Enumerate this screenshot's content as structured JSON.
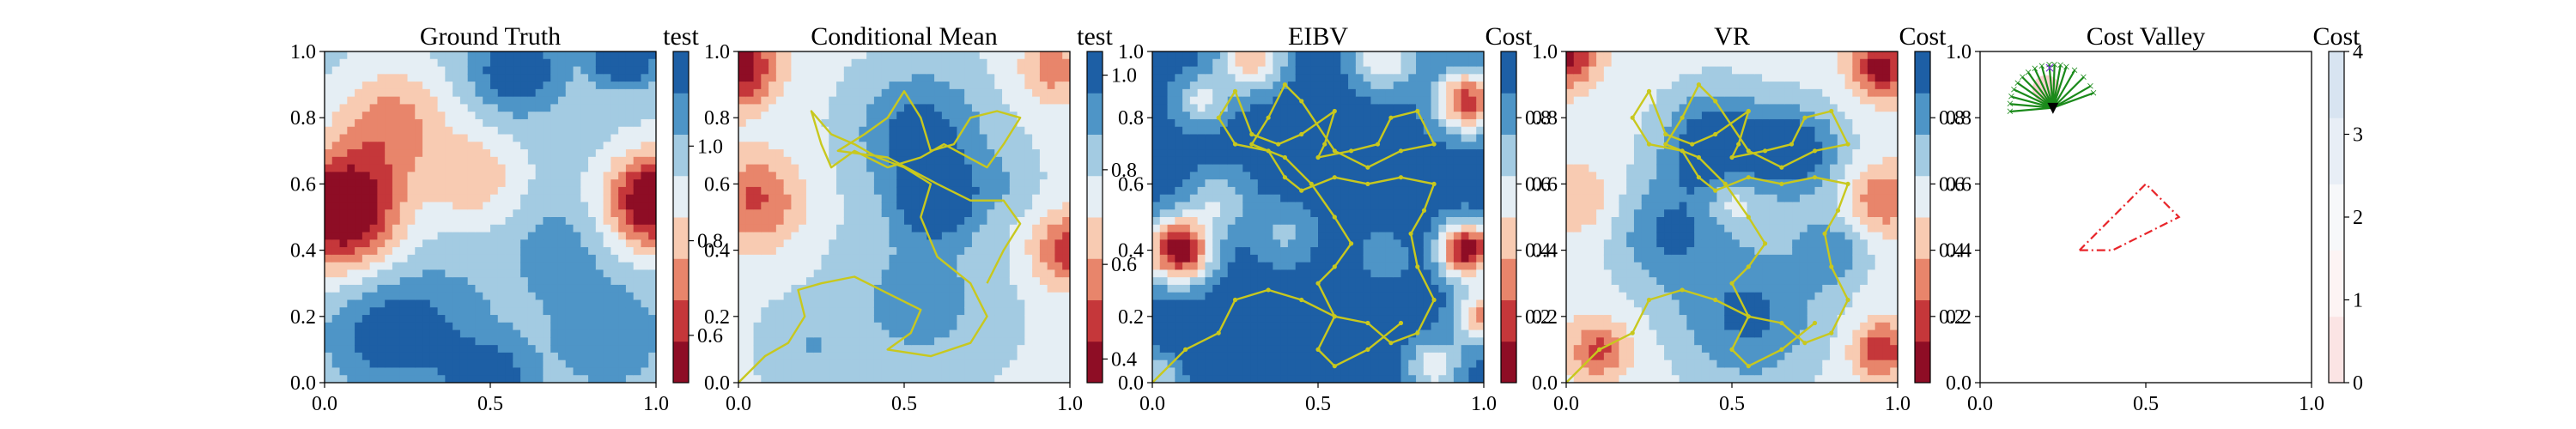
{
  "chart_data": [
    {
      "type": "heatmap",
      "title": "Ground Truth",
      "colorbar_label": "test",
      "colormap": "RdBu",
      "levels": 8,
      "xlim": [
        0,
        1
      ],
      "ylim": [
        0,
        1
      ],
      "xticks": [
        "0.0",
        "0.5",
        "1.0"
      ],
      "yticks": [
        "0.0",
        "0.2",
        "0.4",
        "0.6",
        "0.8",
        "1.0"
      ],
      "colorbar_range": [
        0.5,
        1.2
      ],
      "colorbar_ticks": [
        "0.6",
        "0.8",
        "1.0"
      ],
      "colorbar_tick_values": [
        0.6,
        0.8,
        1.0
      ],
      "field": {
        "base": 0.97,
        "bumps": [
          [
            0.05,
            0.52,
            0.12,
            -0.55
          ],
          [
            0.2,
            0.78,
            0.12,
            -0.25
          ],
          [
            1.0,
            0.55,
            0.1,
            -0.55
          ],
          [
            0.45,
            0.62,
            0.1,
            -0.18
          ],
          [
            0.58,
            0.95,
            0.09,
            0.25
          ],
          [
            0.9,
            1.0,
            0.06,
            0.45
          ],
          [
            0.3,
            0.15,
            0.14,
            0.15
          ],
          [
            0.5,
            0.0,
            0.08,
            0.25
          ],
          [
            0.85,
            0.15,
            0.12,
            0.12
          ],
          [
            0.15,
            0.15,
            0.1,
            0.12
          ],
          [
            0.7,
            0.4,
            0.1,
            0.1
          ]
        ]
      }
    },
    {
      "type": "heatmap",
      "title": "Conditional Mean",
      "colorbar_label": "test",
      "colormap": "RdBu",
      "levels": 8,
      "xlim": [
        0,
        1
      ],
      "ylim": [
        0,
        1
      ],
      "xticks": [
        "0.0",
        "0.5",
        "1.0"
      ],
      "yticks": [
        "0.0",
        "0.2",
        "0.4",
        "0.6",
        "0.8",
        "1.0"
      ],
      "colorbar_range": [
        0.35,
        1.05
      ],
      "colorbar_ticks": [
        "0.4",
        "0.6",
        "0.8",
        "1.0"
      ],
      "colorbar_tick_values": [
        0.4,
        0.6,
        0.8,
        1.0
      ],
      "field": {
        "base": 0.76,
        "bumps": [
          [
            0.0,
            0.95,
            0.08,
            -0.4
          ],
          [
            0.05,
            0.55,
            0.1,
            -0.25
          ],
          [
            1.0,
            0.4,
            0.08,
            -0.3
          ],
          [
            0.95,
            0.95,
            0.07,
            -0.2
          ],
          [
            0.55,
            0.75,
            0.14,
            0.25
          ],
          [
            0.6,
            0.55,
            0.08,
            0.25
          ],
          [
            0.55,
            0.25,
            0.18,
            0.15
          ],
          [
            0.2,
            0.1,
            0.1,
            0.1
          ],
          [
            0.8,
            0.6,
            0.08,
            0.08
          ]
        ]
      },
      "paths": [
        {
          "name": "",
          "color": "#c8c81e",
          "markers": false,
          "points": [
            [
              0,
              0
            ],
            [
              0.08,
              0.08
            ],
            [
              0.15,
              0.12
            ],
            [
              0.2,
              0.2
            ],
            [
              0.18,
              0.28
            ],
            [
              0.25,
              0.3
            ],
            [
              0.35,
              0.32
            ],
            [
              0.45,
              0.27
            ],
            [
              0.55,
              0.22
            ],
            [
              0.52,
              0.15
            ],
            [
              0.45,
              0.1
            ],
            [
              0.58,
              0.08
            ],
            [
              0.7,
              0.12
            ],
            [
              0.75,
              0.2
            ],
            [
              0.7,
              0.3
            ],
            [
              0.6,
              0.38
            ],
            [
              0.55,
              0.5
            ],
            [
              0.58,
              0.6
            ],
            [
              0.5,
              0.65
            ],
            [
              0.42,
              0.68
            ],
            [
              0.35,
              0.72
            ],
            [
              0.28,
              0.75
            ],
            [
              0.22,
              0.82
            ],
            [
              0.25,
              0.72
            ],
            [
              0.28,
              0.65
            ],
            [
              0.35,
              0.7
            ],
            [
              0.45,
              0.65
            ],
            [
              0.55,
              0.68
            ],
            [
              0.62,
              0.72
            ],
            [
              0.75,
              0.65
            ],
            [
              0.8,
              0.72
            ],
            [
              0.85,
              0.8
            ],
            [
              0.78,
              0.82
            ],
            [
              0.7,
              0.8
            ],
            [
              0.65,
              0.72
            ],
            [
              0.58,
              0.7
            ],
            [
              0.55,
              0.8
            ],
            [
              0.5,
              0.88
            ],
            [
              0.45,
              0.8
            ],
            [
              0.38,
              0.75
            ],
            [
              0.3,
              0.7
            ],
            [
              0.45,
              0.68
            ],
            [
              0.6,
              0.6
            ],
            [
              0.7,
              0.55
            ],
            [
              0.8,
              0.55
            ],
            [
              0.85,
              0.48
            ],
            [
              0.8,
              0.4
            ],
            [
              0.75,
              0.3
            ]
          ]
        }
      ]
    },
    {
      "type": "heatmap",
      "title": "EIBV",
      "colorbar_label": "Cost",
      "colormap": "RdBu",
      "levels": 8,
      "xlim": [
        0,
        1
      ],
      "ylim": [
        0,
        1
      ],
      "xticks": [
        "0.0",
        "0.5",
        "1.0"
      ],
      "yticks": [
        "0.0",
        "0.2",
        "0.4",
        "0.6",
        "0.8",
        "1.0"
      ],
      "colorbar_range": [
        0.0,
        1.0
      ],
      "colorbar_ticks": [
        "0.2",
        "0.4",
        "0.6",
        "0.8"
      ],
      "colorbar_tick_values": [
        0.2,
        0.4,
        0.6,
        0.8
      ],
      "field": {
        "base": 0.95,
        "bumps": [
          [
            0.08,
            0.4,
            0.07,
            -0.92
          ],
          [
            0.95,
            0.4,
            0.06,
            -0.92
          ],
          [
            0.3,
            0.98,
            0.07,
            -0.55
          ],
          [
            0.15,
            0.85,
            0.06,
            -0.35
          ],
          [
            0.95,
            0.85,
            0.07,
            -0.75
          ],
          [
            0.7,
            0.98,
            0.07,
            -0.45
          ],
          [
            0.4,
            0.45,
            0.07,
            -0.22
          ],
          [
            0.7,
            0.38,
            0.05,
            -0.2
          ],
          [
            0.85,
            0.05,
            0.06,
            -0.4
          ],
          [
            0.02,
            0.02,
            0.05,
            -0.3
          ],
          [
            1.0,
            0.2,
            0.06,
            -0.6
          ],
          [
            0.2,
            0.55,
            0.07,
            -0.3
          ]
        ]
      },
      "paths": [
        {
          "name": "",
          "color": "#c8c81e",
          "markers": true,
          "points": [
            [
              0,
              0
            ],
            [
              0.1,
              0.1
            ],
            [
              0.2,
              0.15
            ],
            [
              0.25,
              0.25
            ],
            [
              0.35,
              0.28
            ],
            [
              0.45,
              0.25
            ],
            [
              0.55,
              0.2
            ],
            [
              0.65,
              0.18
            ],
            [
              0.72,
              0.12
            ],
            [
              0.8,
              0.15
            ],
            [
              0.85,
              0.25
            ],
            [
              0.8,
              0.35
            ],
            [
              0.78,
              0.45
            ],
            [
              0.82,
              0.52
            ],
            [
              0.85,
              0.6
            ],
            [
              0.75,
              0.62
            ],
            [
              0.65,
              0.6
            ],
            [
              0.55,
              0.62
            ],
            [
              0.45,
              0.58
            ],
            [
              0.4,
              0.62
            ],
            [
              0.35,
              0.7
            ],
            [
              0.25,
              0.72
            ],
            [
              0.2,
              0.8
            ],
            [
              0.25,
              0.88
            ],
            [
              0.3,
              0.75
            ],
            [
              0.38,
              0.72
            ],
            [
              0.45,
              0.75
            ],
            [
              0.55,
              0.82
            ],
            [
              0.52,
              0.72
            ],
            [
              0.5,
              0.68
            ],
            [
              0.6,
              0.7
            ],
            [
              0.68,
              0.72
            ],
            [
              0.72,
              0.8
            ],
            [
              0.8,
              0.82
            ],
            [
              0.85,
              0.72
            ],
            [
              0.75,
              0.7
            ],
            [
              0.65,
              0.65
            ],
            [
              0.55,
              0.7
            ],
            [
              0.45,
              0.85
            ],
            [
              0.4,
              0.9
            ],
            [
              0.35,
              0.8
            ],
            [
              0.3,
              0.72
            ],
            [
              0.4,
              0.68
            ],
            [
              0.48,
              0.6
            ],
            [
              0.55,
              0.5
            ],
            [
              0.6,
              0.42
            ],
            [
              0.55,
              0.35
            ],
            [
              0.5,
              0.3
            ],
            [
              0.55,
              0.2
            ],
            [
              0.5,
              0.1
            ],
            [
              0.55,
              0.05
            ],
            [
              0.65,
              0.1
            ],
            [
              0.75,
              0.18
            ]
          ]
        }
      ]
    },
    {
      "type": "heatmap",
      "title": "VR",
      "colorbar_label": "Cost",
      "colormap": "RdBu",
      "levels": 8,
      "xlim": [
        0,
        1
      ],
      "ylim": [
        0,
        1
      ],
      "xticks": [
        "0.0",
        "0.5",
        "1.0"
      ],
      "yticks": [
        "0.0",
        "0.2",
        "0.4",
        "0.6",
        "0.8",
        "1.0"
      ],
      "colorbar_range": [
        0.0,
        1.0
      ],
      "colorbar_ticks": [
        "0.2",
        "0.4",
        "0.6",
        "0.8"
      ],
      "colorbar_tick_values": [
        0.2,
        0.4,
        0.6,
        0.8
      ],
      "field": {
        "base": 0.55,
        "bumps": [
          [
            0.45,
            0.72,
            0.12,
            0.45
          ],
          [
            0.7,
            0.7,
            0.1,
            0.4
          ],
          [
            0.3,
            0.45,
            0.12,
            0.3
          ],
          [
            0.55,
            0.2,
            0.16,
            0.35
          ],
          [
            0.8,
            0.4,
            0.08,
            0.25
          ],
          [
            0.0,
            0.98,
            0.06,
            -0.5
          ],
          [
            0.95,
            0.95,
            0.06,
            -0.5
          ],
          [
            0.1,
            0.1,
            0.06,
            -0.35
          ],
          [
            0.95,
            0.1,
            0.06,
            -0.4
          ],
          [
            0.95,
            0.55,
            0.07,
            -0.3
          ],
          [
            0.5,
            0.55,
            0.05,
            -0.2
          ],
          [
            0.05,
            0.55,
            0.08,
            -0.15
          ]
        ]
      },
      "paths": [
        {
          "name": "",
          "color": "#c8c81e",
          "markers": true,
          "points": [
            [
              0,
              0
            ],
            [
              0.1,
              0.1
            ],
            [
              0.2,
              0.15
            ],
            [
              0.25,
              0.25
            ],
            [
              0.35,
              0.28
            ],
            [
              0.45,
              0.25
            ],
            [
              0.55,
              0.2
            ],
            [
              0.65,
              0.18
            ],
            [
              0.72,
              0.12
            ],
            [
              0.8,
              0.15
            ],
            [
              0.85,
              0.25
            ],
            [
              0.8,
              0.35
            ],
            [
              0.78,
              0.45
            ],
            [
              0.82,
              0.52
            ],
            [
              0.85,
              0.6
            ],
            [
              0.75,
              0.62
            ],
            [
              0.65,
              0.6
            ],
            [
              0.55,
              0.62
            ],
            [
              0.45,
              0.58
            ],
            [
              0.4,
              0.62
            ],
            [
              0.35,
              0.7
            ],
            [
              0.25,
              0.72
            ],
            [
              0.2,
              0.8
            ],
            [
              0.25,
              0.88
            ],
            [
              0.3,
              0.75
            ],
            [
              0.38,
              0.72
            ],
            [
              0.45,
              0.75
            ],
            [
              0.55,
              0.82
            ],
            [
              0.52,
              0.72
            ],
            [
              0.5,
              0.68
            ],
            [
              0.6,
              0.7
            ],
            [
              0.68,
              0.72
            ],
            [
              0.72,
              0.8
            ],
            [
              0.8,
              0.82
            ],
            [
              0.85,
              0.72
            ],
            [
              0.75,
              0.7
            ],
            [
              0.65,
              0.65
            ],
            [
              0.55,
              0.7
            ],
            [
              0.45,
              0.85
            ],
            [
              0.4,
              0.9
            ],
            [
              0.35,
              0.8
            ],
            [
              0.3,
              0.72
            ],
            [
              0.4,
              0.68
            ],
            [
              0.48,
              0.6
            ],
            [
              0.55,
              0.5
            ],
            [
              0.6,
              0.42
            ],
            [
              0.55,
              0.35
            ],
            [
              0.5,
              0.3
            ],
            [
              0.55,
              0.2
            ],
            [
              0.5,
              0.1
            ],
            [
              0.55,
              0.05
            ],
            [
              0.65,
              0.1
            ],
            [
              0.75,
              0.18
            ]
          ]
        }
      ]
    },
    {
      "type": "heatmap",
      "title": "Cost Valley",
      "colorbar_label": "Cost",
      "colormap": "RdBu",
      "levels": 8,
      "xlim": [
        0,
        1
      ],
      "ylim": [
        0,
        1
      ],
      "xticks": [
        "0.0",
        "0.5",
        "1.0"
      ],
      "yticks": [
        "0.0",
        "0.2",
        "0.4",
        "0.6",
        "0.8",
        "1.0"
      ],
      "colorbar_range": [
        0,
        4
      ],
      "colorbar_ticks": [
        "0",
        "1",
        "2",
        "3",
        "4"
      ],
      "colorbar_tick_values": [
        0,
        1,
        2,
        3,
        4
      ],
      "colorbar_colors": [
        "#fbe4e4",
        "#fdf4f4",
        "#f7f8fa",
        "#e8eef6",
        "#d8e4f1"
      ],
      "polygon": {
        "color": "#e8252a",
        "points": [
          [
            0.3,
            0.4
          ],
          [
            0.4,
            0.4
          ],
          [
            0.6,
            0.5
          ],
          [
            0.5,
            0.6
          ]
        ]
      },
      "branches": {
        "color": "#1a8a1a",
        "origin": [
          0.22,
          0.83
        ],
        "angles_deg": [
          95,
          105,
          115,
          125,
          135,
          145,
          155,
          165,
          175,
          185,
          88,
          80,
          72,
          60,
          45,
          30,
          20
        ],
        "length": 0.13
      },
      "markers": [
        {
          "label": "×",
          "color": "#7a2ad8",
          "x": 0.21,
          "y": 0.95
        },
        {
          "label": "▼",
          "color": "#000000",
          "x": 0.22,
          "y": 0.83
        }
      ]
    }
  ]
}
